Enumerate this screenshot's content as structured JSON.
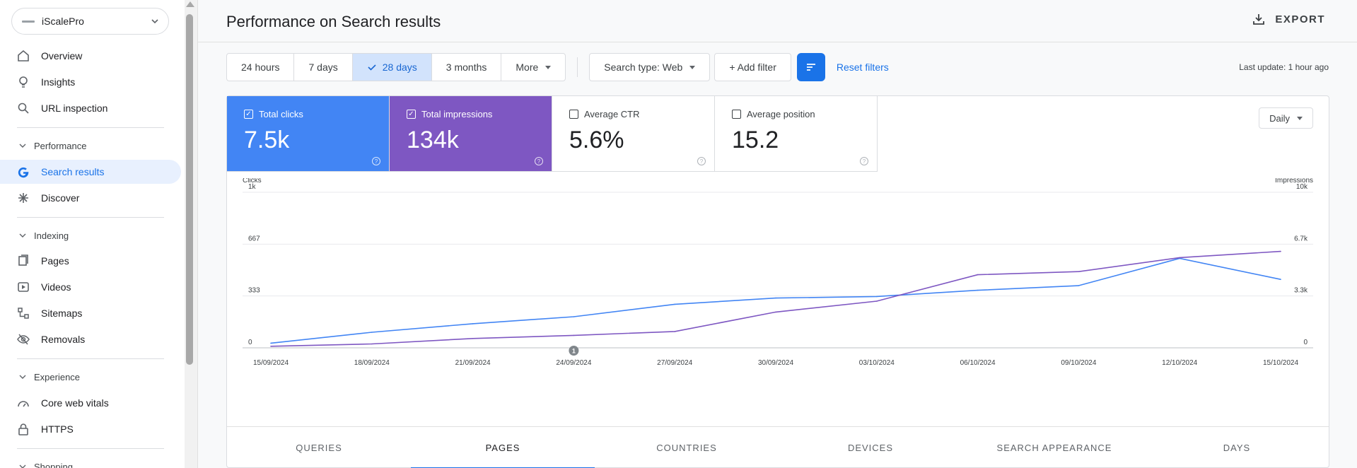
{
  "sidebar": {
    "property": "iScalePro",
    "items_top": [
      {
        "label": "Overview",
        "icon": "home-icon"
      },
      {
        "label": "Insights",
        "icon": "lightbulb-icon"
      },
      {
        "label": "URL inspection",
        "icon": "search-icon"
      }
    ],
    "performance": {
      "title": "Performance",
      "items": [
        {
          "label": "Search results",
          "icon": "google-g-icon",
          "active": true
        },
        {
          "label": "Discover",
          "icon": "asterisk-icon"
        }
      ]
    },
    "indexing": {
      "title": "Indexing",
      "items": [
        {
          "label": "Pages",
          "icon": "pages-icon"
        },
        {
          "label": "Videos",
          "icon": "video-icon"
        },
        {
          "label": "Sitemaps",
          "icon": "sitemap-icon"
        },
        {
          "label": "Removals",
          "icon": "eye-off-icon"
        }
      ]
    },
    "experience": {
      "title": "Experience",
      "items": [
        {
          "label": "Core web vitals",
          "icon": "gauge-icon"
        },
        {
          "label": "HTTPS",
          "icon": "lock-icon"
        }
      ]
    },
    "shopping": {
      "title": "Shopping"
    }
  },
  "header": {
    "title": "Performance on Search results",
    "export_label": "EXPORT"
  },
  "filters": {
    "ranges": [
      "24 hours",
      "7 days",
      "28 days",
      "3 months",
      "More"
    ],
    "selected_range": "28 days",
    "search_type": "Search type: Web",
    "add_filter": "+ Add filter",
    "reset": "Reset filters",
    "last_update": "Last update: 1 hour ago"
  },
  "metrics": [
    {
      "label": "Total clicks",
      "value": "7.5k",
      "checked": true,
      "color": "#4285f4"
    },
    {
      "label": "Total impressions",
      "value": "134k",
      "checked": true,
      "color": "#7e57c2"
    },
    {
      "label": "Average CTR",
      "value": "5.6%",
      "checked": false
    },
    {
      "label": "Average position",
      "value": "15.2",
      "checked": false
    }
  ],
  "granularity": "Daily",
  "chart_data": {
    "type": "line",
    "x": [
      "15/09/2024",
      "18/09/2024",
      "21/09/2024",
      "24/09/2024",
      "27/09/2024",
      "30/09/2024",
      "03/10/2024",
      "06/10/2024",
      "09/10/2024",
      "12/10/2024",
      "15/10/2024"
    ],
    "series": [
      {
        "name": "Clicks",
        "axis": "left",
        "color": "#4285f4",
        "values": [
          30,
          100,
          155,
          200,
          280,
          320,
          330,
          370,
          400,
          575,
          440
        ]
      },
      {
        "name": "Impressions",
        "axis": "right",
        "color": "#7e57c2",
        "values": [
          100,
          250,
          600,
          800,
          1050,
          2300,
          3000,
          4700,
          4900,
          5800,
          6200
        ]
      }
    ],
    "ylabel_left": "Clicks",
    "ylabel_right": "Impressions",
    "yticks_left": [
      "0",
      "333",
      "667",
      "1k"
    ],
    "yticks_right": [
      "0",
      "3.3k",
      "6.7k",
      "10k"
    ],
    "ylim_left": [
      0,
      1000
    ],
    "ylim_right": [
      0,
      10000
    ],
    "annotation": {
      "x": "24/09/2024",
      "label": "1"
    },
    "grid": true
  },
  "tabs": [
    "QUERIES",
    "PAGES",
    "COUNTRIES",
    "DEVICES",
    "SEARCH APPEARANCE",
    "DAYS"
  ],
  "active_tab": "PAGES"
}
